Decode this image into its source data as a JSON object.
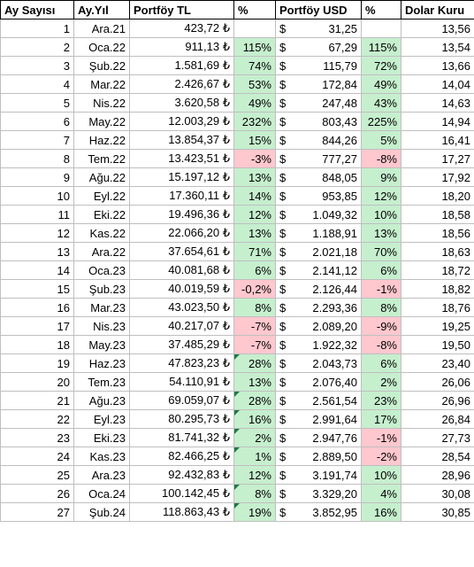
{
  "headers": [
    "Ay Sayısı",
    "Ay.Yıl",
    "Portföy TL",
    "%",
    "Portföy USD",
    "%",
    "Dolar Kuru"
  ],
  "rows": [
    {
      "n": "1",
      "month": "Ara.21",
      "tl": "423,72 ₺",
      "tl_pct": "",
      "usd_sym": "$",
      "usd": "31,25",
      "usd_pct": "",
      "rate": "13,56",
      "tl_cls": "",
      "usd_cls": ""
    },
    {
      "n": "2",
      "month": "Oca.22",
      "tl": "911,13 ₺",
      "tl_pct": "115%",
      "usd_sym": "$",
      "usd": "67,29",
      "usd_pct": "115%",
      "rate": "13,54",
      "tl_cls": "pos",
      "usd_cls": "pos"
    },
    {
      "n": "3",
      "month": "Şub.22",
      "tl": "1.581,69 ₺",
      "tl_pct": "74%",
      "usd_sym": "$",
      "usd": "115,79",
      "usd_pct": "72%",
      "rate": "13,66",
      "tl_cls": "pos",
      "usd_cls": "pos"
    },
    {
      "n": "4",
      "month": "Mar.22",
      "tl": "2.426,67 ₺",
      "tl_pct": "53%",
      "usd_sym": "$",
      "usd": "172,84",
      "usd_pct": "49%",
      "rate": "14,04",
      "tl_cls": "pos",
      "usd_cls": "pos"
    },
    {
      "n": "5",
      "month": "Nis.22",
      "tl": "3.620,58 ₺",
      "tl_pct": "49%",
      "usd_sym": "$",
      "usd": "247,48",
      "usd_pct": "43%",
      "rate": "14,63",
      "tl_cls": "pos",
      "usd_cls": "pos"
    },
    {
      "n": "6",
      "month": "May.22",
      "tl": "12.003,29 ₺",
      "tl_pct": "232%",
      "usd_sym": "$",
      "usd": "803,43",
      "usd_pct": "225%",
      "rate": "14,94",
      "tl_cls": "pos",
      "usd_cls": "pos"
    },
    {
      "n": "7",
      "month": "Haz.22",
      "tl": "13.854,37 ₺",
      "tl_pct": "15%",
      "usd_sym": "$",
      "usd": "844,26",
      "usd_pct": "5%",
      "rate": "16,41",
      "tl_cls": "pos",
      "usd_cls": "pos"
    },
    {
      "n": "8",
      "month": "Tem.22",
      "tl": "13.423,51 ₺",
      "tl_pct": "-3%",
      "usd_sym": "$",
      "usd": "777,27",
      "usd_pct": "-8%",
      "rate": "17,27",
      "tl_cls": "neg",
      "usd_cls": "neg"
    },
    {
      "n": "9",
      "month": "Ağu.22",
      "tl": "15.197,12 ₺",
      "tl_pct": "13%",
      "usd_sym": "$",
      "usd": "848,05",
      "usd_pct": "9%",
      "rate": "17,92",
      "tl_cls": "pos",
      "usd_cls": "pos"
    },
    {
      "n": "10",
      "month": "Eyl.22",
      "tl": "17.360,11 ₺",
      "tl_pct": "14%",
      "usd_sym": "$",
      "usd": "953,85",
      "usd_pct": "12%",
      "rate": "18,20",
      "tl_cls": "pos",
      "usd_cls": "pos"
    },
    {
      "n": "11",
      "month": "Eki.22",
      "tl": "19.496,36 ₺",
      "tl_pct": "12%",
      "usd_sym": "$",
      "usd": "1.049,32",
      "usd_pct": "10%",
      "rate": "18,58",
      "tl_cls": "pos",
      "usd_cls": "pos"
    },
    {
      "n": "12",
      "month": "Kas.22",
      "tl": "22.066,20 ₺",
      "tl_pct": "13%",
      "usd_sym": "$",
      "usd": "1.188,91",
      "usd_pct": "13%",
      "rate": "18,56",
      "tl_cls": "pos",
      "usd_cls": "pos"
    },
    {
      "n": "13",
      "month": "Ara.22",
      "tl": "37.654,61 ₺",
      "tl_pct": "71%",
      "usd_sym": "$",
      "usd": "2.021,18",
      "usd_pct": "70%",
      "rate": "18,63",
      "tl_cls": "pos",
      "usd_cls": "pos"
    },
    {
      "n": "14",
      "month": "Oca.23",
      "tl": "40.081,68 ₺",
      "tl_pct": "6%",
      "usd_sym": "$",
      "usd": "2.141,12",
      "usd_pct": "6%",
      "rate": "18,72",
      "tl_cls": "pos",
      "usd_cls": "pos"
    },
    {
      "n": "15",
      "month": "Şub.23",
      "tl": "40.019,59 ₺",
      "tl_pct": "-0,2%",
      "usd_sym": "$",
      "usd": "2.126,44",
      "usd_pct": "-1%",
      "rate": "18,82",
      "tl_cls": "neg",
      "usd_cls": "neg"
    },
    {
      "n": "16",
      "month": "Mar.23",
      "tl": "43.023,50 ₺",
      "tl_pct": "8%",
      "usd_sym": "$",
      "usd": "2.293,36",
      "usd_pct": "8%",
      "rate": "18,76",
      "tl_cls": "pos",
      "usd_cls": "pos"
    },
    {
      "n": "17",
      "month": "Nis.23",
      "tl": "40.217,07 ₺",
      "tl_pct": "-7%",
      "usd_sym": "$",
      "usd": "2.089,20",
      "usd_pct": "-9%",
      "rate": "19,25",
      "tl_cls": "neg",
      "usd_cls": "neg"
    },
    {
      "n": "18",
      "month": "May.23",
      "tl": "37.485,29 ₺",
      "tl_pct": "-7%",
      "usd_sym": "$",
      "usd": "1.922,32",
      "usd_pct": "-8%",
      "rate": "19,50",
      "tl_cls": "neg",
      "usd_cls": "neg"
    },
    {
      "n": "19",
      "month": "Haz.23",
      "tl": "47.823,23 ₺",
      "tl_pct": "28%",
      "usd_sym": "$",
      "usd": "2.043,73",
      "usd_pct": "6%",
      "rate": "23,40",
      "tl_cls": "pos flag",
      "usd_cls": "pos"
    },
    {
      "n": "20",
      "month": "Tem.23",
      "tl": "54.110,91 ₺",
      "tl_pct": "13%",
      "usd_sym": "$",
      "usd": "2.076,40",
      "usd_pct": "2%",
      "rate": "26,06",
      "tl_cls": "pos",
      "usd_cls": "pos"
    },
    {
      "n": "21",
      "month": "Ağu.23",
      "tl": "69.059,07 ₺",
      "tl_pct": "28%",
      "usd_sym": "$",
      "usd": "2.561,54",
      "usd_pct": "23%",
      "rate": "26,96",
      "tl_cls": "pos flag",
      "usd_cls": "pos"
    },
    {
      "n": "22",
      "month": "Eyl.23",
      "tl": "80.295,73 ₺",
      "tl_pct": "16%",
      "usd_sym": "$",
      "usd": "2.991,64",
      "usd_pct": "17%",
      "rate": "26,84",
      "tl_cls": "pos flag",
      "usd_cls": "pos"
    },
    {
      "n": "23",
      "month": "Eki.23",
      "tl": "81.741,32 ₺",
      "tl_pct": "2%",
      "usd_sym": "$",
      "usd": "2.947,76",
      "usd_pct": "-1%",
      "rate": "27,73",
      "tl_cls": "pos flag",
      "usd_cls": "neg"
    },
    {
      "n": "24",
      "month": "Kas.23",
      "tl": "82.466,25 ₺",
      "tl_pct": "1%",
      "usd_sym": "$",
      "usd": "2.889,50",
      "usd_pct": "-2%",
      "rate": "28,54",
      "tl_cls": "pos flag",
      "usd_cls": "neg"
    },
    {
      "n": "25",
      "month": "Ara.23",
      "tl": "92.432,83 ₺",
      "tl_pct": "12%",
      "usd_sym": "$",
      "usd": "3.191,74",
      "usd_pct": "10%",
      "rate": "28,96",
      "tl_cls": "pos",
      "usd_cls": "pos"
    },
    {
      "n": "26",
      "month": "Oca.24",
      "tl": "100.142,45 ₺",
      "tl_pct": "8%",
      "usd_sym": "$",
      "usd": "3.329,20",
      "usd_pct": "4%",
      "rate": "30,08",
      "tl_cls": "pos flag",
      "usd_cls": "pos"
    },
    {
      "n": "27",
      "month": "Şub.24",
      "tl": "118.863,43 ₺",
      "tl_pct": "19%",
      "usd_sym": "$",
      "usd": "3.852,95",
      "usd_pct": "16%",
      "rate": "30,85",
      "tl_cls": "pos flag",
      "usd_cls": "pos"
    }
  ],
  "colors": {
    "positive": "#c6efce",
    "negative": "#ffc7ce",
    "flag": "#1e7b45",
    "grid": "#bfbfbf"
  }
}
